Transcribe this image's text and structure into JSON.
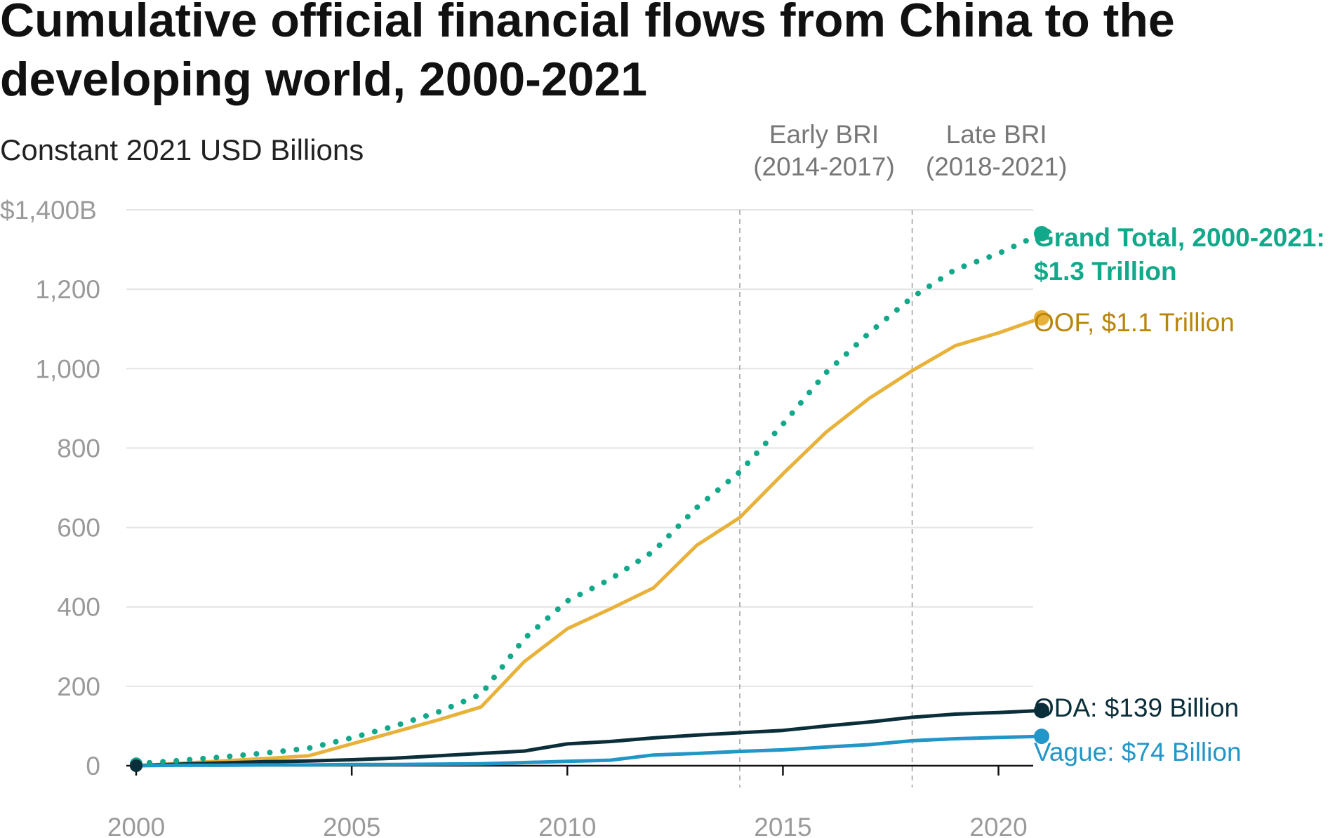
{
  "chart_data": {
    "type": "line",
    "title_lines": [
      "Cumulative official financial flows from China to the",
      "developing world, 2000-2021"
    ],
    "subtitle": "Constant 2021 USD Billions",
    "xlim": [
      2000,
      2021
    ],
    "ylim": [
      0,
      1400
    ],
    "x_ticks": [
      2000,
      2005,
      2010,
      2015,
      2020
    ],
    "x_tick_labels": [
      "2000",
      "2005",
      "2010",
      "2015",
      "2020"
    ],
    "y_ticks": [
      0,
      200,
      400,
      600,
      800,
      1000,
      1200,
      1400
    ],
    "y_tick_labels": [
      "0",
      "200",
      "400",
      "600",
      "800",
      "1,000",
      "1,200",
      "$1,400B"
    ],
    "periods": [
      {
        "x": 2014,
        "label_line1": "Early BRI",
        "label_line2": "(2014-2017)"
      },
      {
        "x": 2018,
        "label_line1": "Late BRI",
        "label_line2": "(2018-2021)"
      }
    ],
    "x": [
      2000,
      2001,
      2002,
      2003,
      2004,
      2005,
      2006,
      2007,
      2008,
      2009,
      2010,
      2011,
      2012,
      2013,
      2014,
      2015,
      2016,
      2017,
      2018,
      2019,
      2020,
      2021
    ],
    "series": [
      {
        "name_lines": [
          "Grand Total, 2000-2021:",
          "$1.3 Trillion"
        ],
        "color": "#12a88a",
        "style": "dotted",
        "bold": true,
        "values": [
          5,
          13,
          22,
          32,
          44,
          70,
          100,
          135,
          180,
          320,
          415,
          470,
          540,
          650,
          740,
          860,
          990,
          1090,
          1180,
          1250,
          1290,
          1340
        ]
      },
      {
        "name_lines": [
          "OOF, $1.1 Trillion"
        ],
        "color": "#e8b23a",
        "label_color": "#b8860b",
        "style": "solid",
        "bold": false,
        "values": [
          0,
          6,
          12,
          18,
          25,
          55,
          85,
          115,
          148,
          262,
          345,
          395,
          448,
          555,
          625,
          735,
          840,
          925,
          995,
          1058,
          1090,
          1128
        ]
      },
      {
        "name_lines": [
          "ODA: $139 Billion"
        ],
        "color": "#0b2f3a",
        "style": "solid",
        "bold": false,
        "values": [
          0,
          4,
          7,
          10,
          12,
          15,
          19,
          25,
          31,
          37,
          55,
          61,
          70,
          77,
          83,
          89,
          100,
          110,
          122,
          130,
          134,
          139
        ]
      },
      {
        "name_lines": [
          "Vague: $74 Billion"
        ],
        "color": "#2196c7",
        "style": "solid",
        "bold": false,
        "values": [
          0,
          1,
          1,
          2,
          2,
          3,
          3,
          4,
          5,
          8,
          11,
          14,
          27,
          31,
          36,
          40,
          47,
          53,
          63,
          68,
          71,
          74
        ]
      }
    ]
  }
}
